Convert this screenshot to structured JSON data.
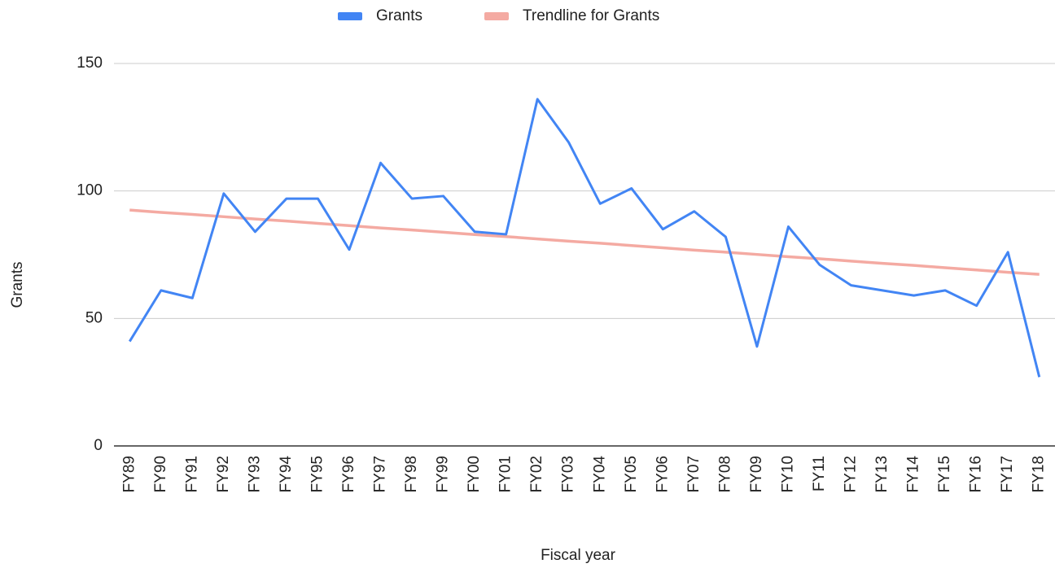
{
  "chart_data": {
    "type": "line",
    "x_label": "Fiscal year",
    "y_label": "Grants",
    "categories": [
      "FY89",
      "FY90",
      "FY91",
      "FY92",
      "FY93",
      "FY94",
      "FY95",
      "FY96",
      "FY97",
      "FY98",
      "FY99",
      "FY00",
      "FY01",
      "FY02",
      "FY03",
      "FY04",
      "FY05",
      "FY06",
      "FY07",
      "FY08",
      "FY09",
      "FY10",
      "FY11",
      "FY12",
      "FY13",
      "FY14",
      "FY15",
      "FY16",
      "FY17",
      "FY18"
    ],
    "series": [
      {
        "name": "Grants",
        "color": "#4285f4",
        "values": [
          41,
          61,
          58,
          99,
          84,
          97,
          97,
          77,
          111,
          97,
          98,
          84,
          83,
          136,
          119,
          95,
          101,
          85,
          92,
          82,
          39,
          86,
          71,
          63,
          61,
          59,
          61,
          55,
          76,
          27
        ]
      },
      {
        "name": "Trendline for Grants",
        "color": "#f4aaa2",
        "values": [
          92.5,
          91.6,
          90.8,
          89.9,
          89.0,
          88.2,
          87.3,
          86.4,
          85.5,
          84.7,
          83.8,
          82.9,
          82.1,
          81.2,
          80.3,
          79.5,
          78.6,
          77.7,
          76.8,
          76.0,
          75.1,
          74.2,
          73.4,
          72.5,
          71.6,
          70.8,
          69.9,
          69.0,
          68.1,
          67.3
        ]
      }
    ],
    "ylim": [
      0,
      150
    ],
    "yticks": [
      0,
      50,
      100,
      150
    ],
    "grid": true,
    "legend": "top"
  }
}
